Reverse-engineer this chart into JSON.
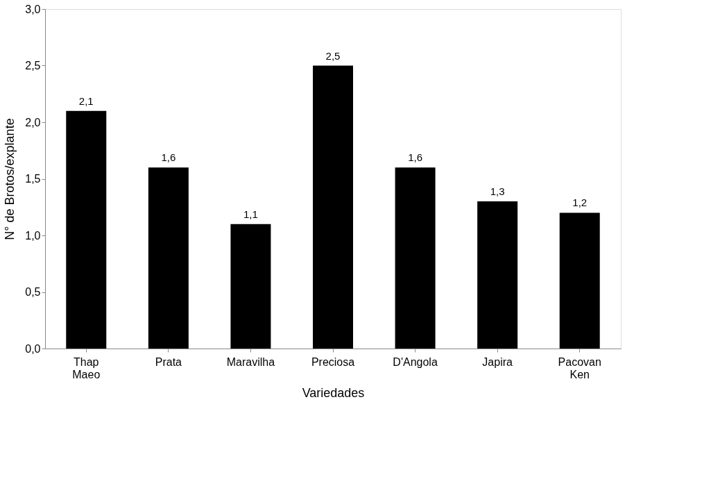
{
  "chart_data": {
    "type": "bar",
    "xlabel": "Variedades",
    "ylabel": "N° de Brotos/explante",
    "categories": [
      "Thap Maeo",
      "Prata",
      "Maravilha",
      "Preciosa",
      "D'Angola",
      "Japira",
      "Pacovan Ken"
    ],
    "values": [
      2.1,
      1.6,
      1.1,
      2.5,
      1.6,
      1.3,
      1.2
    ],
    "value_labels": [
      "2,1",
      "1,6",
      "1,1",
      "2,5",
      "1,6",
      "1,3",
      "1,2"
    ],
    "color": "#000000",
    "ylim": [
      0,
      3
    ],
    "yticks": [
      {
        "value": 0,
        "label": "0,0"
      },
      {
        "value": 0.5,
        "label": "0,5"
      },
      {
        "value": 1,
        "label": "1,0"
      },
      {
        "value": 1.5,
        "label": "1,5"
      },
      {
        "value": 2,
        "label": "2,0"
      },
      {
        "value": 2.5,
        "label": "2,5"
      },
      {
        "value": 3,
        "label": "3,0"
      }
    ],
    "grid": false
  }
}
